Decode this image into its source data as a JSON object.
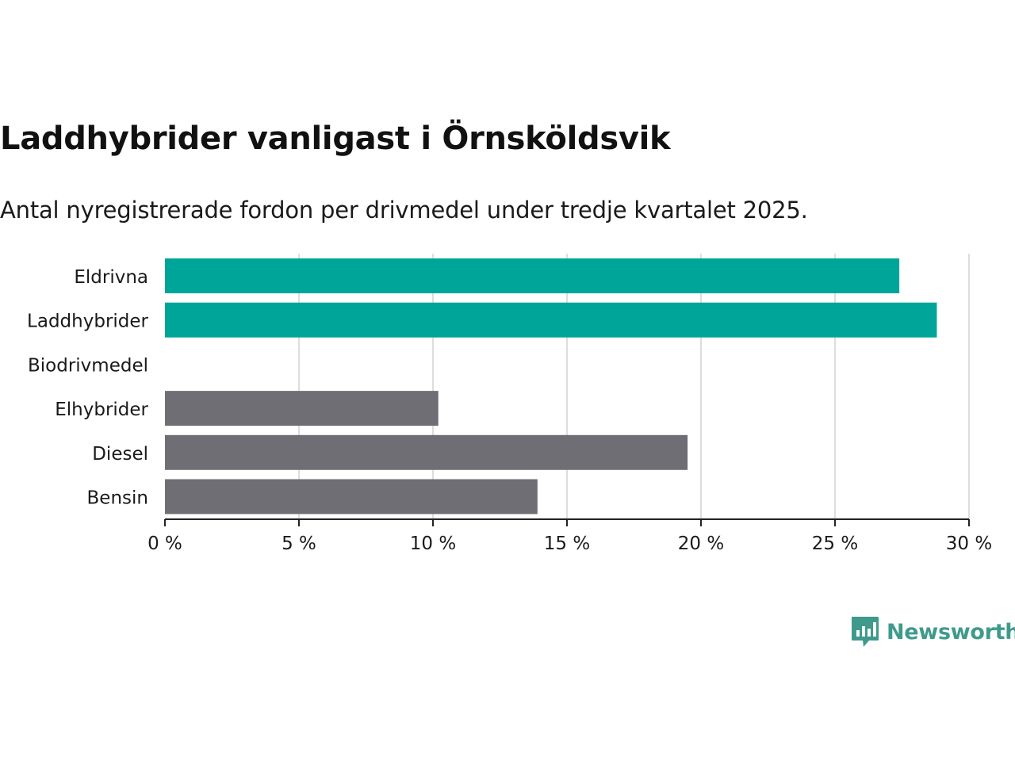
{
  "title": "Laddhybrider vanligast i Örnsköldsvik",
  "subtitle": "Antal nyregistrerade fordon per drivmedel under tredje kvartalet 2025.",
  "brand": {
    "name": "Newsworthy",
    "color": "#3f9a8c",
    "icon": "newsworthy-logo-icon"
  },
  "colors": {
    "highlight": "#00a59a",
    "default": "#6f6e74",
    "grid": "#dddddd",
    "axis": "#222222"
  },
  "chart_data": {
    "type": "bar",
    "orientation": "horizontal",
    "categories": [
      "Eldrivna",
      "Laddhybrider",
      "Biodrivmedel",
      "Elhybrider",
      "Diesel",
      "Bensin"
    ],
    "values": [
      27.4,
      28.8,
      0,
      10.2,
      19.5,
      13.9
    ],
    "highlighted": [
      true,
      true,
      false,
      false,
      false,
      false
    ],
    "xlim": [
      0,
      30
    ],
    "xticks": [
      0,
      5,
      10,
      15,
      20,
      25,
      30
    ],
    "xtick_labels": [
      "0 %",
      "5 %",
      "10 %",
      "15 %",
      "20 %",
      "25 %",
      "30 %"
    ],
    "xlabel": "",
    "ylabel": "",
    "grid": true
  }
}
